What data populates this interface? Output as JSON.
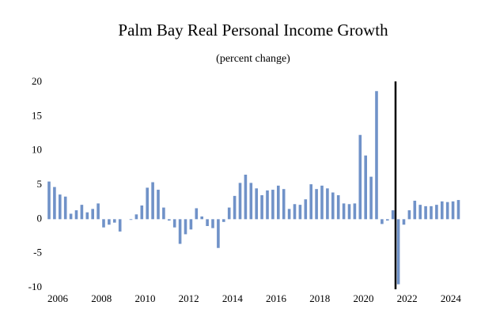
{
  "chart_data": {
    "type": "bar",
    "title": "Palm Bay Real Personal Income Growth",
    "subtitle": "(percent change)",
    "categories": [
      "2006",
      null,
      null,
      null,
      null,
      null,
      null,
      null,
      "2008",
      null,
      null,
      null,
      null,
      null,
      null,
      null,
      "2010",
      null,
      null,
      null,
      null,
      null,
      null,
      null,
      "2012",
      null,
      null,
      null,
      null,
      null,
      null,
      null,
      "2014",
      null,
      null,
      null,
      null,
      null,
      null,
      null,
      "2016",
      null,
      null,
      null,
      null,
      null,
      null,
      null,
      "2018",
      null,
      null,
      null,
      null,
      null,
      null,
      null,
      "2020",
      null,
      null,
      null,
      null,
      null,
      null,
      null,
      "2022",
      null,
      null,
      null,
      null,
      null,
      null,
      null,
      "2024",
      null,
      null,
      null
    ],
    "values": [
      5.5,
      4.7,
      3.6,
      3.3,
      0.8,
      1.3,
      2.1,
      1.0,
      1.5,
      2.3,
      -1.2,
      -0.8,
      -0.5,
      -1.8,
      0,
      -0.1,
      0.7,
      2.0,
      4.6,
      5.4,
      4.3,
      1.7,
      -0.2,
      -1.2,
      -3.6,
      -2.2,
      -1.5,
      1.6,
      0.4,
      -1.0,
      -1.3,
      -4.2,
      -0.4,
      1.7,
      3.4,
      5.3,
      6.5,
      5.3,
      4.5,
      3.5,
      4.2,
      4.3,
      4.9,
      4.4,
      1.5,
      2.2,
      2.1,
      2.9,
      5.1,
      4.4,
      4.9,
      4.5,
      3.9,
      3.5,
      2.3,
      2.2,
      2.3,
      12.3,
      9.3,
      6.2,
      18.7,
      -0.7,
      -0.2,
      1.3,
      -9.5,
      -0.8,
      1.3,
      2.7,
      2.1,
      1.9,
      1.9,
      2.1,
      2.6,
      2.5,
      2.6,
      2.8
    ],
    "color": "#7092c8",
    "ylim": [
      -10,
      20
    ],
    "yticks": [
      20,
      15,
      10,
      5,
      0,
      -5,
      -10
    ],
    "grid": false
  }
}
